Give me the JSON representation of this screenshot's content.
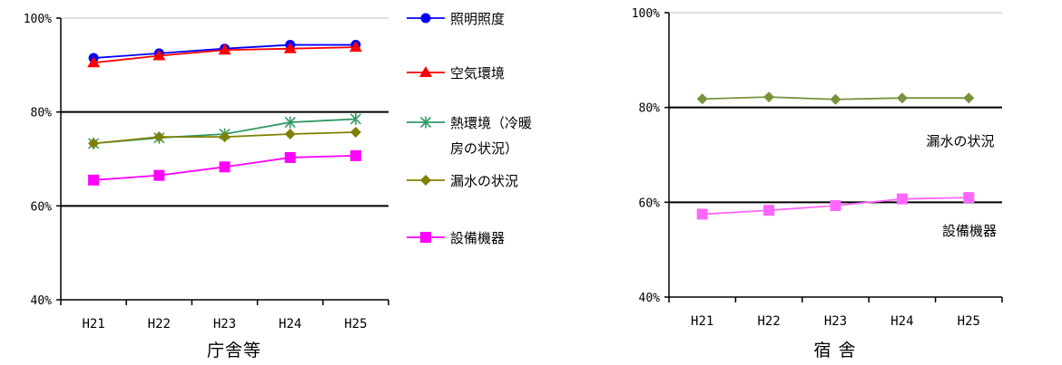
{
  "chart_data": [
    {
      "type": "line",
      "title": "庁舎等",
      "categories": [
        "H21",
        "H22",
        "H23",
        "H24",
        "H25"
      ],
      "yticks": [
        "40%",
        "60%",
        "80%",
        "100%"
      ],
      "ylim": [
        40,
        100
      ],
      "series": [
        {
          "name": "照明照度",
          "values": [
            91.5,
            92.5,
            93.5,
            94.3,
            94.3
          ],
          "color": "#0000ff",
          "marker": "circle"
        },
        {
          "name": "空気環境",
          "values": [
            90.5,
            92,
            93.2,
            93.5,
            93.8
          ],
          "color": "#ff0000",
          "marker": "triangle"
        },
        {
          "name_lines": [
            "熱環境（冷暖",
            "房の状況）"
          ],
          "values": [
            73.3,
            74.5,
            75.3,
            77.8,
            78.5
          ],
          "color": "#339966",
          "marker": "asterisk"
        },
        {
          "name": "漏水の状況",
          "values": [
            73.3,
            74.7,
            74.7,
            75.3,
            75.7
          ],
          "color": "#808000",
          "marker": "diamond"
        },
        {
          "name": "設備機器",
          "values": [
            65.5,
            66.5,
            68.3,
            70.3,
            70.7
          ],
          "color": "#ff00ff",
          "marker": "square"
        }
      ]
    },
    {
      "type": "line",
      "title": "宿 舎",
      "categories": [
        "H21",
        "H22",
        "H23",
        "H24",
        "H25"
      ],
      "yticks": [
        "40%",
        "60%",
        "80%",
        "100%"
      ],
      "ylim": [
        40,
        100
      ],
      "series": [
        {
          "name": "漏水の状況",
          "values": [
            81.8,
            82.2,
            81.7,
            82,
            82
          ],
          "color": "#77933c",
          "marker": "diamond"
        },
        {
          "name": "設備機器",
          "values": [
            57.5,
            58.3,
            59.3,
            60.7,
            61
          ],
          "color": "#ff66ff",
          "marker": "square"
        }
      ]
    }
  ]
}
